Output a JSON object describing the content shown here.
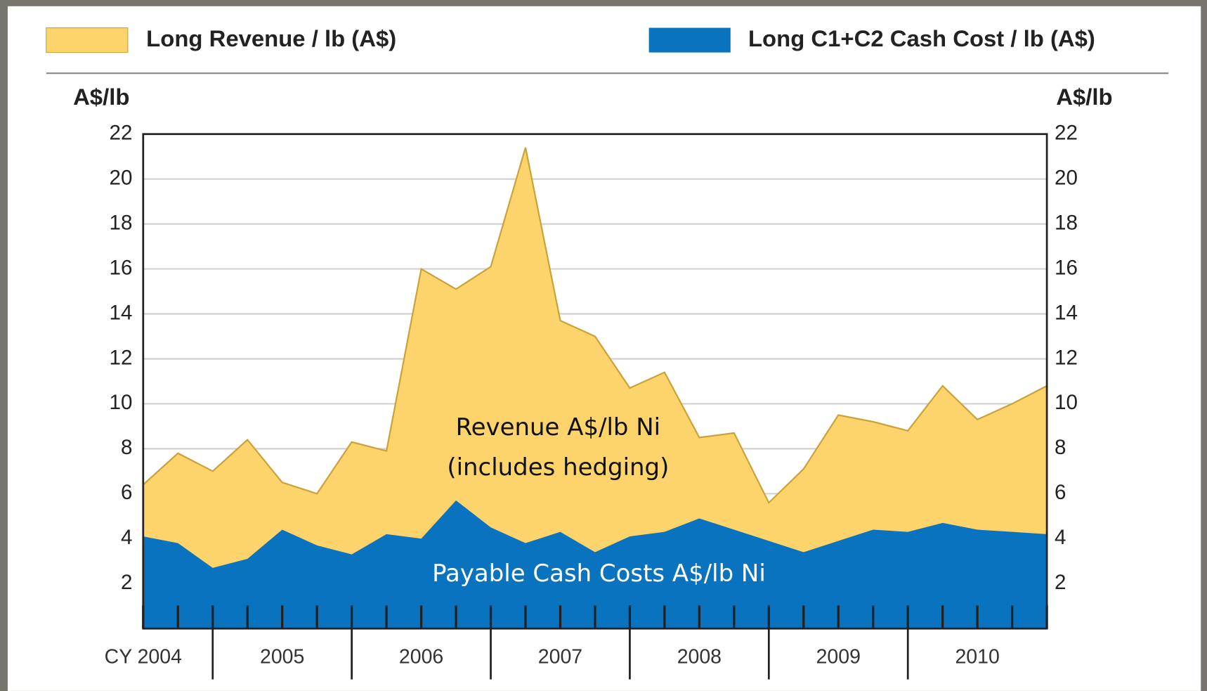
{
  "chart_data": {
    "type": "area",
    "series": [
      {
        "name": "Long Revenue / lb (A$)",
        "color": "#fdd36b",
        "values": [
          6.4,
          7.8,
          7.0,
          8.4,
          6.5,
          6.0,
          8.3,
          7.9,
          16.0,
          15.1,
          16.1,
          21.4,
          13.7,
          13.0,
          10.7,
          11.4,
          8.5,
          8.7,
          5.6,
          7.1,
          9.5,
          9.2,
          8.8,
          10.8,
          9.3,
          10.0,
          10.8
        ]
      },
      {
        "name": "Long C1+C2 Cash Cost / lb (A$)",
        "color": "#0a73bf",
        "values": [
          4.1,
          3.8,
          2.7,
          3.1,
          4.4,
          3.7,
          3.3,
          4.2,
          4.0,
          5.7,
          4.5,
          3.8,
          4.3,
          3.4,
          4.1,
          4.3,
          4.9,
          4.4,
          3.9,
          3.4,
          3.9,
          4.4,
          4.3,
          4.7,
          4.4,
          4.3,
          4.2
        ]
      }
    ],
    "x": [
      0,
      1,
      2,
      3,
      4,
      5,
      6,
      7,
      8,
      9,
      10,
      11,
      12,
      13,
      14,
      15,
      16,
      17,
      18,
      19,
      20,
      21,
      22,
      23,
      24,
      25,
      26
    ],
    "xlim": [
      0,
      26
    ],
    "xticks": [
      0,
      1,
      2,
      3,
      4,
      5,
      6,
      7,
      8,
      9,
      10,
      11,
      12,
      13,
      14,
      15,
      16,
      17,
      18,
      19,
      20,
      21,
      22,
      23,
      24,
      25,
      26
    ],
    "major_xticks": [
      2,
      6,
      10,
      14,
      18,
      22
    ],
    "year_labels": [
      {
        "value": 0,
        "label": "CY 2004"
      },
      {
        "value": 4,
        "label": "2005"
      },
      {
        "value": 8,
        "label": "2006"
      },
      {
        "value": 12,
        "label": "2007"
      },
      {
        "value": 16,
        "label": "2008"
      },
      {
        "value": 20,
        "label": "2009"
      },
      {
        "value": 24,
        "label": "2010"
      }
    ],
    "ylabel": "A$/lb",
    "ylim": [
      0,
      22
    ],
    "yticks": [
      2,
      4,
      6,
      8,
      10,
      12,
      14,
      16,
      18,
      20,
      22
    ],
    "grid": true,
    "annotations": [
      "Revenue A$/lb Ni",
      "(includes hedging)",
      "Payable Cash Costs A$/lb Ni"
    ]
  }
}
